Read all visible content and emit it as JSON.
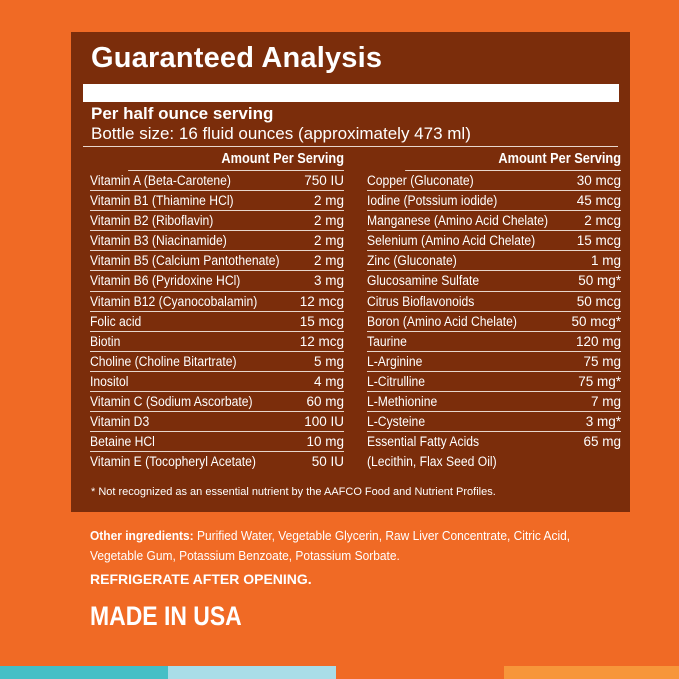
{
  "title": "Guaranteed Analysis",
  "serving": "Per half ounce serving",
  "bottle": "Bottle size: 16 fluid ounces (approximately 473  ml)",
  "amount_header": "Amount Per Serving",
  "left": [
    {
      "name": "Vitamin A (Beta-Carotene)",
      "amount": "750 IU"
    },
    {
      "name": "Vitamin B1 (Thiamine HCl)",
      "amount": "2 mg"
    },
    {
      "name": "Vitamin B2 (Riboflavin)",
      "amount": "2 mg"
    },
    {
      "name": "Vitamin B3 (Niacinamide)",
      "amount": "2 mg"
    },
    {
      "name": "Vitamin B5 (Calcium Pantothenate)",
      "amount": "2 mg"
    },
    {
      "name": "Vitamin B6 (Pyridoxine HCl)",
      "amount": "3 mg"
    },
    {
      "name": "Vitamin B12 (Cyanocobalamin)",
      "amount": "12 mcg"
    },
    {
      "name": "Folic acid",
      "amount": "15 mcg"
    },
    {
      "name": "Biotin",
      "amount": "12 mcg"
    },
    {
      "name": "Choline (Choline Bitartrate)",
      "amount": "5 mg"
    },
    {
      "name": "Inositol",
      "amount": "4 mg"
    },
    {
      "name": "Vitamin C (Sodium Ascorbate)",
      "amount": "60 mg"
    },
    {
      "name": "Vitamin D3",
      "amount": "100 IU"
    },
    {
      "name": "Betaine HCl",
      "amount": "10 mg"
    },
    {
      "name": "Vitamin E (Tocopheryl Acetate)",
      "amount": "50 IU"
    }
  ],
  "right": [
    {
      "name": "Copper (Gluconate)",
      "amount": "30 mcg"
    },
    {
      "name": "Iodine (Potssium iodide)",
      "amount": "45 mcg"
    },
    {
      "name": "Manganese (Amino Acid Chelate)",
      "amount": "2 mcg"
    },
    {
      "name": "Selenium (Amino Acid Chelate)",
      "amount": "15 mcg"
    },
    {
      "name": "Zinc (Gluconate)",
      "amount": "1 mg"
    },
    {
      "name": "Glucosamine Sulfate",
      "amount": "50 mg*"
    },
    {
      "name": "Citrus Bioflavonoids",
      "amount": "50 mcg"
    },
    {
      "name": "Boron (Amino Acid Chelate)",
      "amount": "50 mcg*"
    },
    {
      "name": "Taurine",
      "amount": "120 mg"
    },
    {
      "name": "L-Arginine",
      "amount": "75 mg"
    },
    {
      "name": "L-Citrulline",
      "amount": "75 mg*"
    },
    {
      "name": "L-Methionine",
      "amount": "7 mg"
    },
    {
      "name": "L-Cysteine",
      "amount": "3 mg*"
    },
    {
      "name": "Essential Fatty Acids",
      "amount": "65 mg"
    },
    {
      "name": "(Lecithin, Flax Seed Oil)",
      "amount": ""
    }
  ],
  "footnote": "* Not recognized as an essential nutrient by the AAFCO Food and Nutrient Profiles.",
  "other_label": "Other ingredients:",
  "other_text": " Purified Water, Vegetable Glycerin, Raw Liver Concentrate, Citric Acid, Vegetable Gum, Potassium Benzoate, Potassium Sorbate.",
  "refrigerate": "REFRIGERATE AFTER OPENING.",
  "made": "MADE IN USA",
  "colors": {
    "background": "#f06a25",
    "panel": "#7b2d0b",
    "strips": [
      "#45bfc6",
      "#a9dde8",
      "#f06a25",
      "#f7963a"
    ]
  }
}
